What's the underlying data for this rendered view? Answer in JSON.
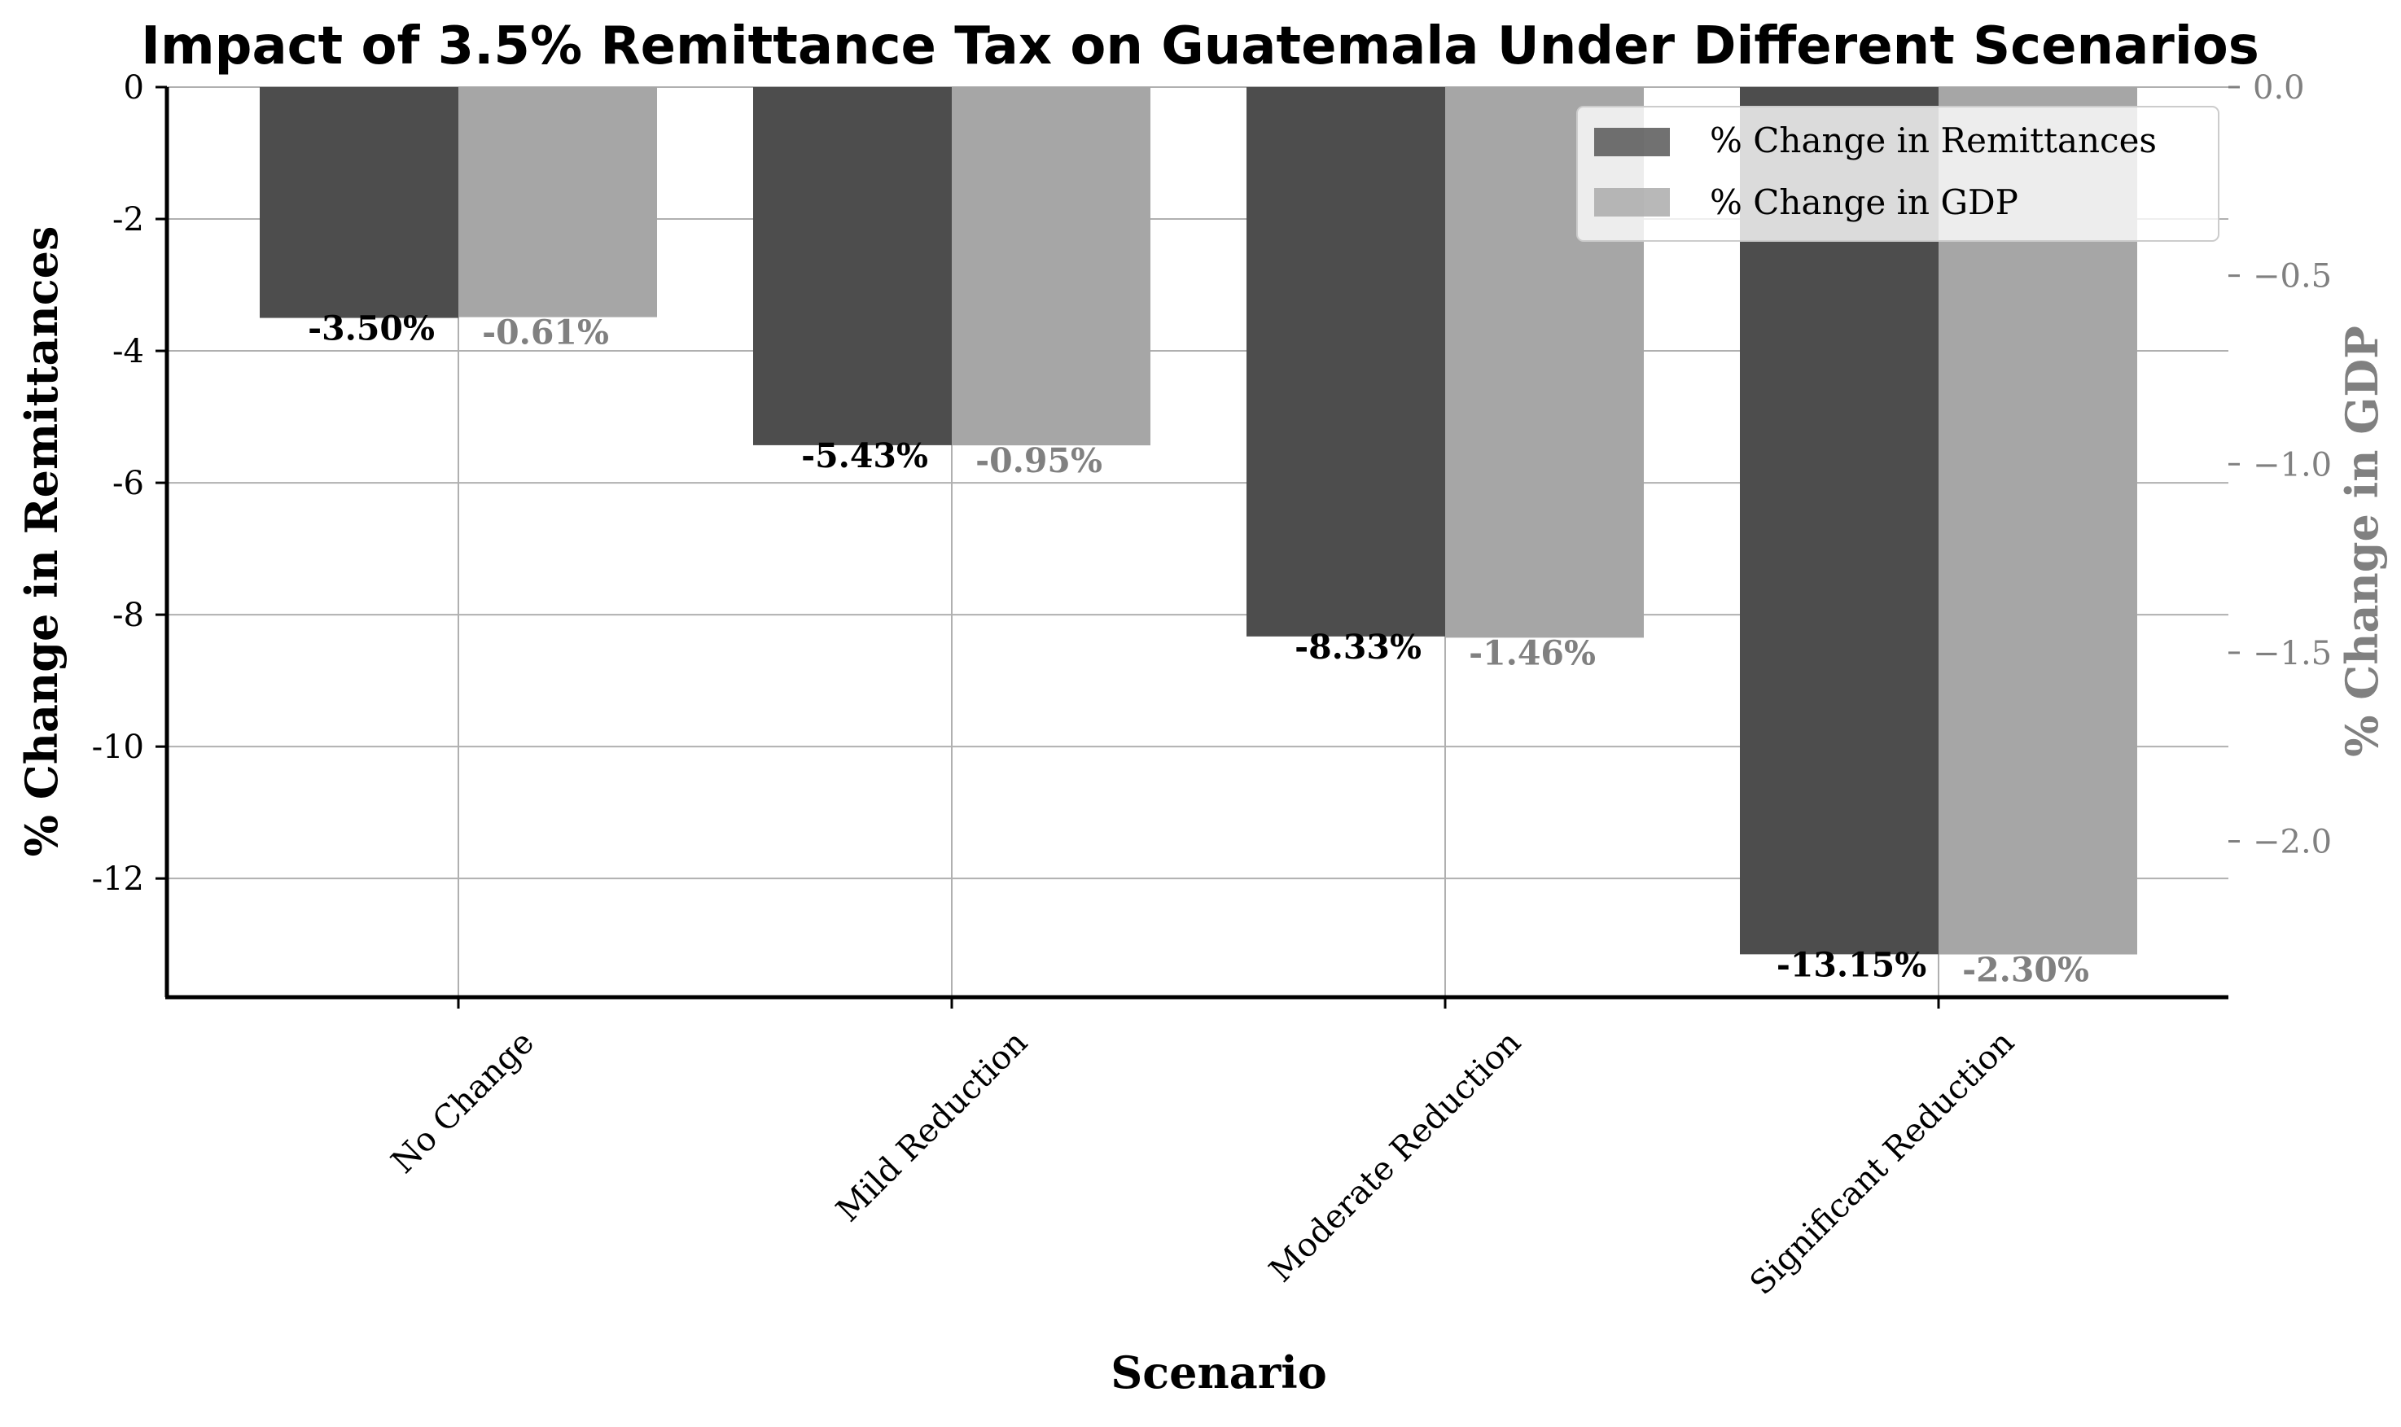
{
  "chart_data": {
    "type": "bar",
    "title": "Impact of 3.5% Remittance Tax on Guatemala Under Different Scenarios",
    "xlabel": "Scenario",
    "ylabel_left": "% Change in Remittances",
    "ylabel_right": "% Change in GDP",
    "categories": [
      "No Change",
      "Mild Reduction",
      "Moderate Reduction",
      "Significant Reduction"
    ],
    "series": [
      {
        "name": "% Change in Remittances",
        "axis": "left",
        "color": "#4d4d4d",
        "values": [
          -3.5,
          -5.43,
          -8.33,
          -13.15
        ],
        "labels": [
          "-3.50%",
          "-5.43%",
          "-8.33%",
          "-13.15%"
        ]
      },
      {
        "name": "% Change in GDP",
        "axis": "right",
        "color": "#a6a6a6",
        "values": [
          -0.61,
          -0.95,
          -1.46,
          -2.3
        ],
        "labels": [
          "-0.61%",
          "-0.95%",
          "-1.46%",
          "-2.30%"
        ]
      }
    ],
    "ylim_left": [
      -13.8,
      0
    ],
    "ylim_right": [
      -2.4133,
      0
    ],
    "yticks_left": [
      0,
      -2,
      -4,
      -6,
      -8,
      -10,
      -12
    ],
    "ytick_labels_left": [
      "0",
      "-2",
      "-4",
      "-6",
      "-8",
      "-10",
      "-12"
    ],
    "yticks_right": [
      0.0,
      -0.5,
      -1.0,
      -1.5,
      -2.0
    ],
    "ytick_labels_right": [
      "0.0",
      "−0.5",
      "−1.0",
      "−1.5",
      "−2.0"
    ],
    "grid": true,
    "legend_position": "top-right",
    "colors": {
      "remittances": "#4d4d4d",
      "gdp": "#a6a6a6",
      "right_axis_text": "#808080",
      "grid": "#b0b0b0"
    }
  }
}
